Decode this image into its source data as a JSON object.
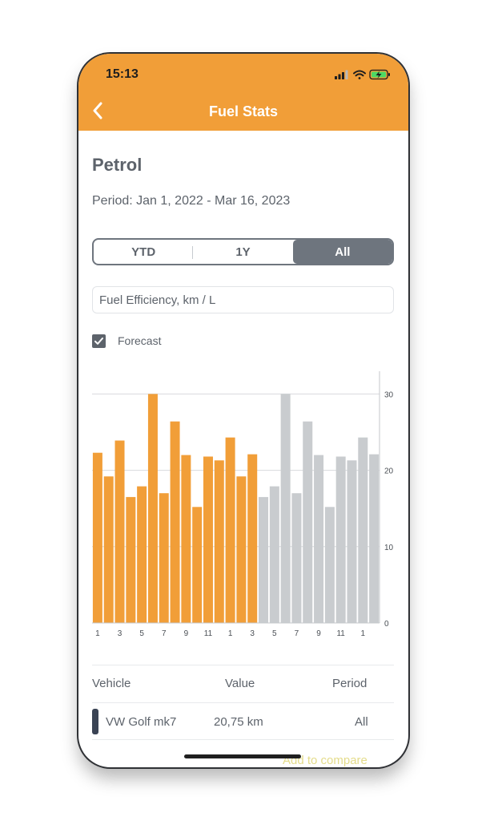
{
  "status_bar": {
    "time": "15:13"
  },
  "nav": {
    "title": "Fuel Stats"
  },
  "fuel": {
    "title": "Petrol",
    "period_text": "Period: Jan 1, 2022 - Mar 16, 2023"
  },
  "segments": [
    {
      "label": "YTD",
      "active": false
    },
    {
      "label": "1Y",
      "active": false
    },
    {
      "label": "All",
      "active": true
    }
  ],
  "metric": {
    "label": "Fuel Efficiency, km / L"
  },
  "forecast": {
    "label": "Forecast",
    "checked": true
  },
  "colors": {
    "accent": "#f19e38",
    "forecast": "#c9cccf",
    "text": "#5d636b"
  },
  "chart_data": {
    "type": "bar",
    "categories": [
      "1",
      "2",
      "3",
      "4",
      "5",
      "6",
      "7",
      "8",
      "9",
      "10",
      "11",
      "12",
      "1",
      "2",
      "3",
      "4",
      "5",
      "6",
      "7",
      "8",
      "9",
      "10",
      "11",
      "12",
      "1",
      "2"
    ],
    "x_tick_labels": [
      "1",
      "3",
      "5",
      "7",
      "9",
      "11",
      "1",
      "3",
      "5",
      "7",
      "9",
      "11",
      "1"
    ],
    "series": [
      {
        "values": [
          22.3,
          19.2,
          23.9,
          16.5,
          17.9,
          30.0,
          17.0,
          26.4,
          22.0,
          15.2,
          21.8,
          21.3,
          24.3,
          19.2,
          22.1,
          null,
          null,
          null,
          null,
          null,
          null,
          null,
          null,
          null,
          null,
          null
        ]
      },
      {
        "values": [
          null,
          null,
          null,
          null,
          null,
          null,
          null,
          null,
          null,
          null,
          null,
          null,
          null,
          null,
          null,
          16.5,
          17.9,
          30.0,
          17.0,
          26.4,
          22.0,
          15.2,
          21.8,
          21.3,
          24.3,
          22.1
        ]
      }
    ],
    "y_ticks": [
      0,
      10,
      20,
      30
    ],
    "ylim": [
      0,
      33
    ],
    "grid": true,
    "y_axis_side": "right"
  },
  "table": {
    "headers": {
      "vehicle": "Vehicle",
      "value": "Value",
      "period": "Period"
    },
    "rows": [
      {
        "vehicle": "VW Golf mk7",
        "value": "20,75 km",
        "period": "All"
      }
    ],
    "add_compare": "Add to compare"
  }
}
